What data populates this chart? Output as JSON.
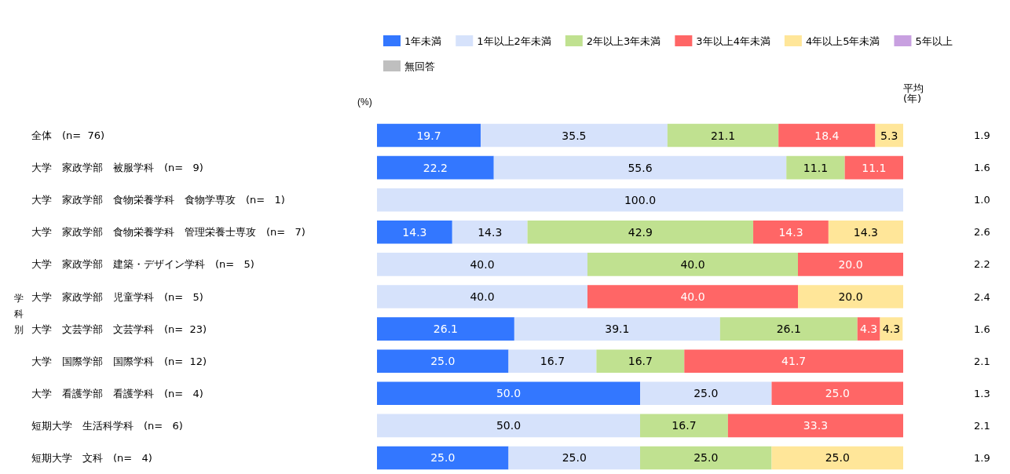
{
  "chart_data": {
    "type": "bar",
    "orientation": "horizontal",
    "stacked": true,
    "categories": [
      "全体　(n=  76)",
      "大学　家政学部　被服学科　(n=   9)",
      "大学　家政学部　食物栄養学科　食物学専攻　(n=   1)",
      "大学　家政学部　食物栄養学科　管理栄養士専攻　(n=   7)",
      "大学　家政学部　建築・デザイン学科　(n=   5)",
      "大学　家政学部　児童学科　(n=   5)",
      "大学　文芸学部　文芸学科　(n=  23)",
      "大学　国際学部　国際学科　(n=  12)",
      "大学　看護学部　看護学科　(n=   4)",
      "短期大学　生活科学科　(n=   6)",
      "短期大学　文科　(n=   4)"
    ],
    "y2_categories": [
      "1.9",
      "1.6",
      "1.0",
      "2.6",
      "2.2",
      "2.4",
      "1.6",
      "2.1",
      "1.3",
      "2.1",
      "1.9"
    ],
    "y2label": "平均\n(年)",
    "xlim": [
      0,
      100
    ],
    "tick_labels": "y",
    "legend": "top",
    "annotations": [
      "学科別",
      "(%)"
    ],
    "series": [
      {
        "name": "1年未満",
        "color": "#3377ff",
        "values": [
          19.7,
          22.2,
          0,
          14.3,
          0,
          0,
          26.1,
          25.0,
          50.0,
          0,
          25.0
        ],
        "value_labels": [
          "19.7",
          "22.2",
          null,
          "14.3",
          null,
          null,
          "26.1",
          "25.0",
          "50.0",
          null,
          "25.0"
        ]
      },
      {
        "name": "1年以上2年未満",
        "color": "#d6e2fb",
        "values": [
          35.5,
          55.6,
          100.0,
          14.3,
          40.0,
          40.0,
          39.1,
          16.7,
          25.0,
          50.0,
          25.0
        ],
        "value_labels": [
          "35.5",
          "55.6",
          "100.0",
          "14.3",
          "40.0",
          "40.0",
          "39.1",
          "16.7",
          "25.0",
          "50.0",
          "25.0"
        ]
      },
      {
        "name": "2年以上3年未満",
        "color": "#c0e190",
        "values": [
          21.1,
          11.1,
          0,
          42.9,
          40.0,
          0,
          26.1,
          16.7,
          0,
          16.7,
          25.0
        ],
        "value_labels": [
          "21.1",
          "11.1",
          null,
          "42.9",
          "40.0",
          null,
          "26.1",
          "16.7",
          null,
          "16.7",
          "25.0"
        ]
      },
      {
        "name": "3年以上4年未満",
        "color": "#ff6666",
        "values": [
          18.4,
          11.1,
          0,
          14.3,
          20.0,
          40.0,
          4.3,
          41.7,
          25.0,
          33.3,
          0
        ],
        "value_labels": [
          "18.4",
          "11.1",
          null,
          "14.3",
          "20.0",
          "40.0",
          "4.3",
          "41.7",
          "25.0",
          "33.3",
          null
        ]
      },
      {
        "name": "4年以上5年未満",
        "color": "#ffe699",
        "values": [
          5.3,
          0,
          0,
          14.3,
          0,
          20.0,
          4.3,
          0,
          0,
          0,
          25.0
        ],
        "value_labels": [
          "5.3",
          null,
          null,
          "14.3",
          null,
          "20.0",
          "4.3",
          null,
          null,
          null,
          "25.0"
        ]
      },
      {
        "name": "5年以上",
        "color": "#c8a0e0",
        "values": [
          0,
          0,
          0,
          0,
          0,
          0,
          0,
          0,
          0,
          0,
          0
        ],
        "value_labels": [
          null,
          null,
          null,
          null,
          null,
          null,
          null,
          null,
          null,
          null,
          null
        ]
      },
      {
        "name": "無回答",
        "color": "#bfbfbf",
        "values": [
          0,
          0,
          0,
          0,
          0,
          0,
          0,
          0,
          0,
          0,
          0
        ],
        "value_labels": [
          null,
          null,
          null,
          null,
          null,
          null,
          null,
          null,
          null,
          null,
          null
        ]
      }
    ]
  }
}
